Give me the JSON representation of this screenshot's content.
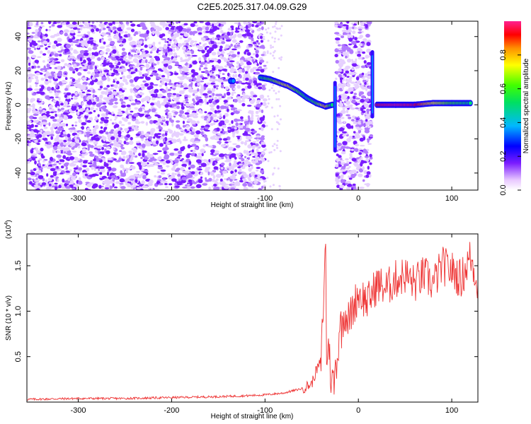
{
  "figure": {
    "title": "C2E5.2025.317.04.09.G29"
  },
  "chart_data": [
    {
      "type": "heatmap",
      "xlabel": "Height of straight line (km)",
      "ylabel": "Frequency (Hz)",
      "xlim": [
        -355,
        128
      ],
      "ylim": [
        -50,
        49
      ],
      "x_ticks": [
        -300,
        -200,
        -100,
        0,
        100
      ],
      "y_ticks": [
        -40,
        -20,
        0,
        20,
        40
      ],
      "colorbar": {
        "label": "Normalized spectral amplitude",
        "range": [
          0.0,
          1.0
        ],
        "ticks": [
          0.0,
          0.2,
          0.4,
          0.6,
          0.8
        ],
        "tick_labels": [
          "0.0",
          "0.2",
          "0.4",
          "0.6",
          "0.8"
        ]
      },
      "noise_regions": [
        {
          "x_range": [
            -355,
            -100
          ],
          "y_range": [
            -50,
            49
          ],
          "amplitude": 0.08
        },
        {
          "x_range": [
            -24,
            14
          ],
          "y_range": [
            -50,
            49
          ],
          "amplitude": 0.1
        }
      ],
      "ridge": [
        {
          "x": -137,
          "y": 14,
          "a": 0.35
        },
        {
          "x": -105,
          "y": 16,
          "a": 0.5
        },
        {
          "x": -95,
          "y": 15,
          "a": 0.6
        },
        {
          "x": -85,
          "y": 13,
          "a": 0.7
        },
        {
          "x": -75,
          "y": 11,
          "a": 0.75
        },
        {
          "x": -65,
          "y": 8,
          "a": 0.6
        },
        {
          "x": -55,
          "y": 4,
          "a": 0.5
        },
        {
          "x": -45,
          "y": 1,
          "a": 0.6
        },
        {
          "x": -35,
          "y": -1,
          "a": 0.8
        },
        {
          "x": -28,
          "y": 0,
          "a": 0.5
        },
        {
          "x": 20,
          "y": 0,
          "a": 0.95
        },
        {
          "x": 40,
          "y": 0,
          "a": 0.98
        },
        {
          "x": 60,
          "y": 0,
          "a": 0.95
        },
        {
          "x": 80,
          "y": 1,
          "a": 0.75
        },
        {
          "x": 100,
          "y": 1,
          "a": 0.6
        },
        {
          "x": 120,
          "y": 1,
          "a": 0.5
        }
      ],
      "vertical_streaks": [
        {
          "x": -25,
          "y_range": [
            -28,
            14
          ]
        },
        {
          "x": 15,
          "y_range": [
            -8,
            32
          ]
        }
      ]
    },
    {
      "type": "line",
      "xlabel": "Height of straight line (km)",
      "ylabel": "SNR (10 * v/v)",
      "y_multiplier": "(x10",
      "y_multiplier_exp": "4",
      "y_multiplier_close": ")",
      "xlim": [
        -355,
        128
      ],
      "ylim": [
        0,
        18500
      ],
      "x_ticks": [
        -300,
        -200,
        -100,
        0,
        100
      ],
      "y_ticks": [
        5000,
        10000,
        15000
      ],
      "y_tick_labels": [
        "0.5",
        "1.0",
        "1.5"
      ],
      "series": [
        {
          "color": "#ee3333",
          "x": [
            -355,
            -300,
            -250,
            -200,
            -150,
            -120,
            -100,
            -80,
            -60,
            -50,
            -45,
            -40,
            -37,
            -35,
            -34,
            -33,
            -32,
            -30,
            -28,
            -26,
            -24,
            -22,
            -20,
            -18,
            -15,
            -10,
            -5,
            0,
            10,
            20,
            30,
            40,
            50,
            60,
            70,
            80,
            90,
            100,
            110,
            120,
            128
          ],
          "y": [
            300,
            400,
            400,
            500,
            600,
            700,
            800,
            1000,
            1500,
            2000,
            3500,
            4500,
            12000,
            17500,
            5000,
            4000,
            8000,
            3000,
            2500,
            2000,
            4500,
            5000,
            9000,
            8000,
            10000,
            9000,
            10500,
            12000,
            11000,
            13000,
            12500,
            13500,
            14000,
            13000,
            14000,
            13000,
            15000,
            14500,
            13500,
            16000,
            13000
          ]
        }
      ]
    }
  ]
}
